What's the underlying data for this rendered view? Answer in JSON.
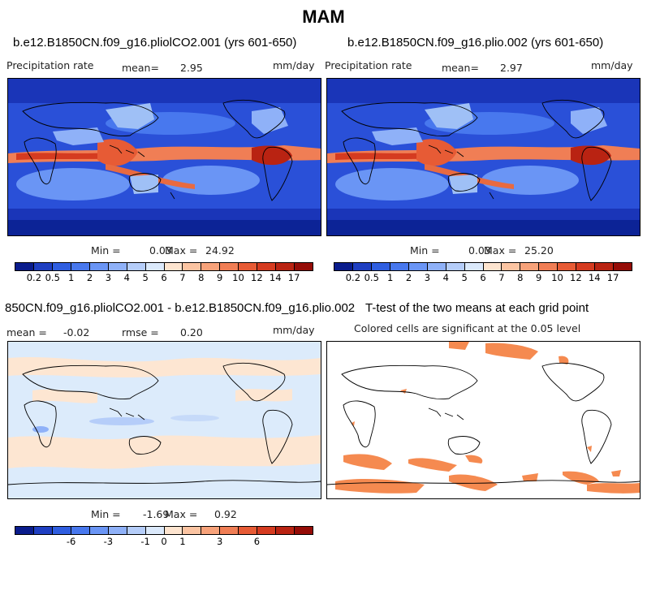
{
  "figure_title": "MAM",
  "panels": {
    "top_left": {
      "title": "b.e12.B1850CN.f09_g16.pliolCO2.001 (yrs 601-650)",
      "variable": "Precipitation rate",
      "mean_label": "mean=",
      "mean_value": "2.95",
      "units": "mm/day",
      "min_label": "Min =",
      "min_value": "0.03",
      "max_label": "Max =",
      "max_value": "24.92"
    },
    "top_right": {
      "title": "b.e12.B1850CN.f09_g16.plio.002 (yrs 601-650)",
      "variable": "Precipitation rate",
      "mean_label": "mean=",
      "mean_value": "2.97",
      "units": "mm/day",
      "min_label": "Min =",
      "min_value": "0.03",
      "max_label": "Max =",
      "max_value": "25.20"
    },
    "bottom_left": {
      "title": "850CN.f09_g16.pliolCO2.001 - b.e12.B1850CN.f09_g16.plio.002",
      "mean_label": "mean =",
      "mean_value": "-0.02",
      "rmse_label": "rmse =",
      "rmse_value": "0.20",
      "units": "mm/day",
      "min_label": "Min =",
      "min_value": "-1.69",
      "max_label": "Max =",
      "max_value": "0.92"
    },
    "bottom_right": {
      "title": "T-test of the two means at each grid point",
      "subtitle": "Colored cells are significant at the 0.05 level"
    }
  },
  "colorbars": {
    "precip_colors": [
      "#0a1c8c",
      "#1f3fc2",
      "#2f5ee0",
      "#4878ee",
      "#6a95f5",
      "#8fb1f8",
      "#b5cdf9",
      "#dbe9fb",
      "#fde4cf",
      "#fbc4a2",
      "#f7a27a",
      "#f07e55",
      "#e75b35",
      "#d53b20",
      "#b92312",
      "#950c07"
    ],
    "precip_ticks": [
      "0.2",
      "0.5",
      "1",
      "2",
      "3",
      "4",
      "5",
      "6",
      "7",
      "8",
      "9",
      "10",
      "12",
      "14",
      "17"
    ],
    "diff_colors": [
      "#0a1c8c",
      "#1f3fc2",
      "#2f5ee0",
      "#4878ee",
      "#6a95f5",
      "#8fb1f8",
      "#b5cdf9",
      "#dbe9fb",
      "#fde4cf",
      "#fbc4a2",
      "#f7a27a",
      "#f07e55",
      "#e75b35",
      "#d53b20",
      "#b92312",
      "#950c07"
    ],
    "diff_ticks": [
      "-6",
      "-3",
      "-1",
      "0",
      "1",
      "3",
      "6"
    ]
  },
  "map_colors": {
    "ocean_deep": "#1b3fcc",
    "ocean_mid": "#3f6de6",
    "tropic_band": "#e8572f",
    "tropic_core": "#c5260f",
    "land_dry": "#9fc0f6",
    "diff_bg": "#dcebfb",
    "diff_pos": "#fde6d2",
    "ttest_fill": "#f58a50"
  }
}
